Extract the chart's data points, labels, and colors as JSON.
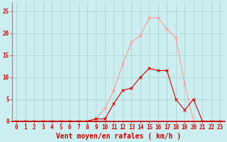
{
  "x_labels": [
    0,
    1,
    2,
    3,
    4,
    5,
    6,
    7,
    8,
    9,
    10,
    11,
    12,
    13,
    14,
    15,
    16,
    17,
    18,
    19,
    20,
    21,
    22,
    23
  ],
  "rafales_y": [
    0,
    0,
    0,
    0,
    0,
    0,
    0,
    0,
    0,
    0.5,
    3,
    7,
    13,
    18,
    19.5,
    23.5,
    23.5,
    21,
    19,
    8.5,
    0,
    0,
    0,
    0
  ],
  "moyen_y": [
    0,
    0,
    0,
    0,
    0,
    0,
    0,
    0,
    0,
    0.5,
    0.5,
    4,
    7,
    7.5,
    10,
    12,
    11.5,
    11.5,
    5,
    2.5,
    5,
    0,
    0,
    0
  ],
  "bg_color": "#cceef0",
  "grid_color": "#aacccc",
  "line_color_rafales": "#ff9999",
  "line_color_moyen": "#cc0000",
  "xlabel": "Vent moyen/en rafales ( km/h )",
  "ylim": [
    0,
    27
  ],
  "yticks": [
    0,
    5,
    10,
    15,
    20,
    25
  ],
  "xlim": [
    -0.5,
    23.5
  ],
  "tick_fontsize": 5.5,
  "xlabel_fontsize": 7.0
}
